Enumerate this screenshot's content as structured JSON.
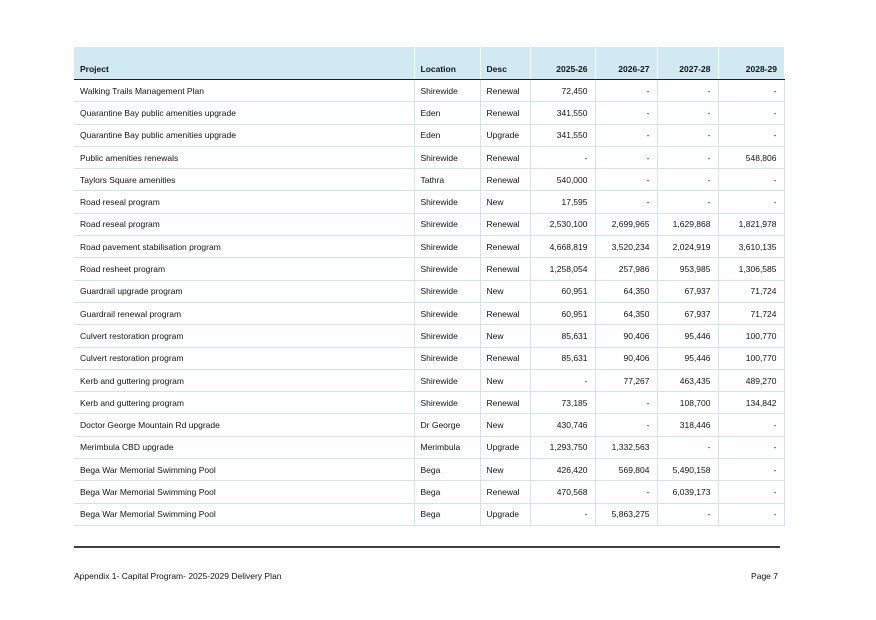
{
  "colors": {
    "header_bg": "#d0e9f3",
    "grid_line": "#cfe4ef",
    "header_rule": "#1f1f1f",
    "bottom_rule": "#3f3f3f",
    "text": "#141414"
  },
  "table": {
    "columns": [
      {
        "label": "Project",
        "align": "left"
      },
      {
        "label": "Location",
        "align": "left"
      },
      {
        "label": "Desc",
        "align": "left"
      },
      {
        "label": "2025-26",
        "align": "right"
      },
      {
        "label": "2026-27",
        "align": "right"
      },
      {
        "label": "2027-28",
        "align": "right"
      },
      {
        "label": "2028-29",
        "align": "right"
      }
    ],
    "rows": [
      [
        "Walking Trails Management Plan",
        "Shirewide",
        "Renewal",
        "72,450",
        "-",
        "-",
        "-"
      ],
      [
        "Quarantine Bay public amenities upgrade",
        "Eden",
        "Renewal",
        "341,550",
        "-",
        "-",
        "-"
      ],
      [
        "Quarantine Bay public amenities upgrade",
        "Eden",
        "Upgrade",
        "341,550",
        "-",
        "-",
        "-"
      ],
      [
        "Public amenities renewals",
        "Shirewide",
        "Renewal",
        "-",
        "-",
        "-",
        "548,806"
      ],
      [
        "Taylors Square amenities",
        "Tathra",
        "Renewal",
        "540,000",
        "-",
        "-",
        "-"
      ],
      [
        "Road reseal program",
        "Shirewide",
        "New",
        "17,595",
        "-",
        "-",
        "-"
      ],
      [
        "Road reseal program",
        "Shirewide",
        "Renewal",
        "2,530,100",
        "2,699,965",
        "1,629,868",
        "1,821,978"
      ],
      [
        "Road pavement stabilisation program",
        "Shirewide",
        "Renewal",
        "4,668,819",
        "3,520,234",
        "2,024,919",
        "3,610,135"
      ],
      [
        "Road resheet program",
        "Shirewide",
        "Renewal",
        "1,258,054",
        "257,986",
        "953,985",
        "1,306,585"
      ],
      [
        "Guardrail upgrade program",
        "Shirewide",
        "New",
        "60,951",
        "64,350",
        "67,937",
        "71,724"
      ],
      [
        "Guardrail renewal program",
        "Shirewide",
        "Renewal",
        "60,951",
        "64,350",
        "67,937",
        "71,724"
      ],
      [
        "Culvert restoration program",
        "Shirewide",
        "New",
        "85,631",
        "90,406",
        "95,446",
        "100,770"
      ],
      [
        "Culvert restoration program",
        "Shirewide",
        "Renewal",
        "85,631",
        "90,406",
        "95,446",
        "100,770"
      ],
      [
        "Kerb and guttering program",
        "Shirewide",
        "New",
        "-",
        "77,267",
        "463,435",
        "489,270"
      ],
      [
        "Kerb and guttering program",
        "Shirewide",
        "Renewal",
        "73,185",
        "-",
        "108,700",
        "134,842"
      ],
      [
        "Doctor George Mountain Rd upgrade",
        "Dr George",
        "New",
        "430,746",
        "-",
        "318,446",
        "-"
      ],
      [
        "Merimbula CBD upgrade",
        "Merimbula",
        "Upgrade",
        "1,293,750",
        "1,332,563",
        "-",
        "-"
      ],
      [
        "Bega War Memorial Swimming Pool",
        "Bega",
        "New",
        "426,420",
        "569,804",
        "5,490,158",
        "-"
      ],
      [
        "Bega War Memorial Swimming Pool",
        "Bega",
        "Renewal",
        "470,568",
        "-",
        "6,039,173",
        "-"
      ],
      [
        "Bega War Memorial Swimming Pool",
        "Bega",
        "Upgrade",
        "-",
        "5,863,275",
        "-",
        "-"
      ]
    ]
  },
  "footer": {
    "left": "Appendix 1- Capital Program- 2025-2029 Delivery Plan",
    "right": "Page 7"
  }
}
